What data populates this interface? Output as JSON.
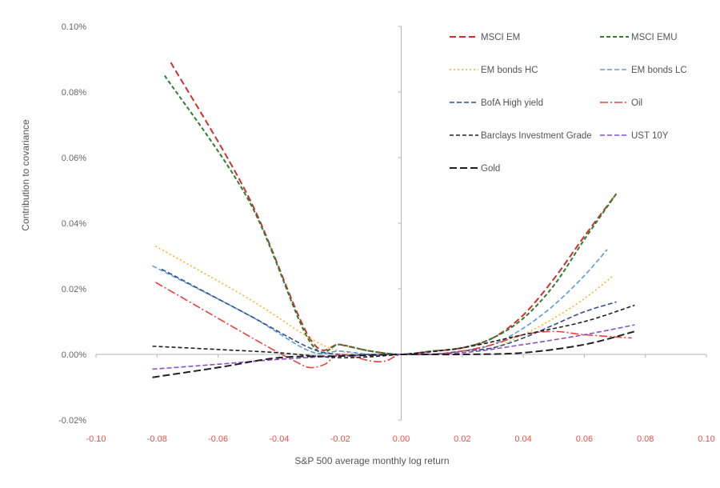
{
  "chart_data": {
    "type": "line",
    "xlabel": "S&P 500 average monthly log return",
    "ylabel": "Contribution to covariance",
    "xlim": [
      -0.1,
      0.1
    ],
    "ylim": [
      -0.0002,
      0.001
    ],
    "x_ticks": [
      "-0.10",
      "-0.08",
      "-0.06",
      "-0.04",
      "-0.02",
      "0.00",
      "0.02",
      "0.04",
      "0.06",
      "0.08",
      "0.10"
    ],
    "y_ticks": [
      "-0.02%",
      "0.00%",
      "0.02%",
      "0.04%",
      "0.06%",
      "0.08%",
      "0.10%"
    ],
    "x_tick_values": [
      -0.1,
      -0.08,
      -0.06,
      -0.04,
      -0.02,
      0.0,
      0.02,
      0.04,
      0.06,
      0.08,
      0.1
    ],
    "y_tick_values": [
      -0.0002,
      0.0,
      0.0002,
      0.0004,
      0.0006,
      0.0008,
      0.001
    ],
    "grid": false,
    "legend_position": "top-right",
    "series": [
      {
        "name": "MSCI EM",
        "color": "#d0312d",
        "dash": "8,4",
        "width": 2.0,
        "x": [
          -0.0755,
          -0.05,
          -0.03,
          -0.02,
          -0.01,
          0.0,
          0.01,
          0.02,
          0.03,
          0.04,
          0.05,
          0.06,
          0.0705
        ],
        "y": [
          0.00089,
          0.00048,
          5e-05,
          3e-05,
          1e-05,
          0.0,
          1e-05,
          2e-05,
          5e-05,
          0.00012,
          0.00023,
          0.00036,
          0.00049
        ]
      },
      {
        "name": "MSCI EMU",
        "color": "#2e7d32",
        "dash": "5,3",
        "width": 2.0,
        "x": [
          -0.0775,
          -0.05,
          -0.03,
          -0.02,
          -0.01,
          0.0,
          0.01,
          0.02,
          0.03,
          0.04,
          0.05,
          0.06,
          0.0705
        ],
        "y": [
          0.00085,
          0.00047,
          4e-05,
          3e-05,
          1e-05,
          0.0,
          1e-05,
          2e-05,
          5e-05,
          0.00011,
          0.00021,
          0.00035,
          0.00049
        ]
      },
      {
        "name": "EM bonds HC",
        "color": "#f0b429",
        "dash": "2,3",
        "width": 1.6,
        "x": [
          -0.0805,
          -0.05,
          -0.03,
          -0.02,
          -0.01,
          0.0,
          0.01,
          0.02,
          0.03,
          0.04,
          0.05,
          0.06,
          0.0695
        ],
        "y": [
          0.00033,
          0.00017,
          5e-05,
          1e-05,
          0.0,
          0.0,
          0.0,
          1e-05,
          2e-05,
          6e-05,
          0.00011,
          0.00017,
          0.00024
        ]
      },
      {
        "name": "EM bonds LC",
        "color": "#5b9bd5",
        "dash": "6,3",
        "width": 1.6,
        "x": [
          -0.0815,
          -0.05,
          -0.03,
          -0.02,
          -0.01,
          0.0,
          0.01,
          0.02,
          0.03,
          0.04,
          0.05,
          0.06,
          0.0675
        ],
        "y": [
          0.00027,
          0.00012,
          1e-05,
          1e-05,
          0.0,
          0.0,
          0.0,
          1e-05,
          3e-05,
          8e-05,
          0.00015,
          0.00024,
          0.00032
        ]
      },
      {
        "name": "BofA High yield",
        "color": "#2f4f8f",
        "dash": "6,3",
        "width": 1.6,
        "x": [
          -0.0785,
          -0.05,
          -0.03,
          -0.02,
          -0.01,
          0.0,
          0.01,
          0.02,
          0.03,
          0.04,
          0.05,
          0.06,
          0.0705
        ],
        "y": [
          0.00026,
          0.00012,
          2e-05,
          0.0,
          0.0,
          0.0,
          0.0,
          1e-05,
          2e-05,
          5e-05,
          9e-05,
          0.00013,
          0.00016
        ]
      },
      {
        "name": "Oil",
        "color": "#e8413c",
        "dash": "10,3,2,3",
        "width": 1.6,
        "x": [
          -0.0805,
          -0.06,
          -0.045,
          -0.035,
          -0.03,
          -0.025,
          -0.02,
          -0.01,
          -0.005,
          0.0,
          0.01,
          0.02,
          0.03,
          0.04,
          0.05,
          0.06,
          0.0755
        ],
        "y": [
          0.00022,
          0.00011,
          3e-05,
          -2e-05,
          -4e-05,
          -3e-05,
          0.0,
          -2e-05,
          -2e-05,
          0.0,
          0.0,
          1e-05,
          3e-05,
          6e-05,
          7e-05,
          6e-05,
          5e-05
        ]
      },
      {
        "name": "Barclays Investment Grade",
        "color": "#1f1f1f",
        "dash": "5,3",
        "width": 1.6,
        "x": [
          -0.0815,
          -0.06,
          -0.04,
          -0.02,
          0.0,
          0.02,
          0.04,
          0.06,
          0.0765
        ],
        "y": [
          2.5e-05,
          1.5e-05,
          5e-06,
          -1e-05,
          0.0,
          2e-05,
          6e-05,
          0.0001,
          0.00015
        ]
      },
      {
        "name": "UST 10Y",
        "color": "#8a4fc7",
        "dash": "6,3",
        "width": 1.6,
        "x": [
          -0.0815,
          -0.06,
          -0.04,
          -0.02,
          0.0,
          0.02,
          0.04,
          0.06,
          0.0765
        ],
        "y": [
          -4.5e-05,
          -3e-05,
          -1.5e-05,
          -5e-06,
          0.0,
          5e-06,
          3e-05,
          6e-05,
          9e-05
        ]
      },
      {
        "name": "Gold",
        "color": "#1f1f1f",
        "dash": "9,4",
        "width": 2.0,
        "x": [
          -0.0815,
          -0.06,
          -0.04,
          -0.02,
          0.0,
          0.02,
          0.04,
          0.06,
          0.0765
        ],
        "y": [
          -7e-05,
          -4e-05,
          -1e-05,
          -5e-06,
          0.0,
          0.0,
          5e-06,
          3e-05,
          7e-05
        ]
      }
    ]
  }
}
